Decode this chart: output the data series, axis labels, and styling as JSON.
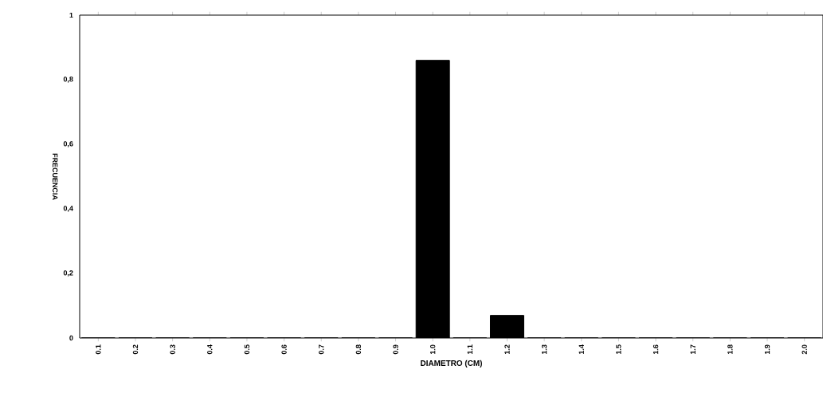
{
  "chart_data": {
    "type": "bar",
    "xlabel": "DIAMETRO (CM)",
    "ylabel": "FRECUENCIA",
    "categories": [
      "0.1",
      "0.2",
      "0.3",
      "0.4",
      "0.5",
      "0.6",
      "0.7",
      "0.8",
      "0.9",
      "1.0",
      "1.1",
      "1.2",
      "1.3",
      "1.4",
      "1.5",
      "1.6",
      "1.7",
      "1.8",
      "1.9",
      "2.0"
    ],
    "values": [
      0,
      0,
      0,
      0,
      0,
      0,
      0,
      0,
      0,
      0.86,
      0,
      0.07,
      0,
      0,
      0,
      0,
      0,
      0,
      0,
      0
    ],
    "color": "#000000",
    "ylim": [
      0,
      1
    ],
    "yticks": [
      0,
      {
        "value": 0.2,
        "label": "0,2"
      },
      {
        "value": 0.4,
        "label": "0,4"
      },
      {
        "value": 0.6,
        "label": "0,6"
      },
      {
        "value": 0.8,
        "label": "0,8"
      },
      1
    ],
    "grid": false
  }
}
